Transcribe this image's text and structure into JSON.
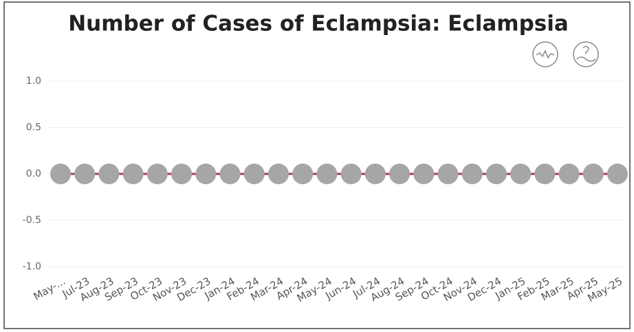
{
  "chart_data": {
    "type": "line",
    "title": "Number of Cases of Eclampsia: Eclampsia",
    "categories": [
      "May-...",
      "Jul-23",
      "Aug-23",
      "Sep-23",
      "Oct-23",
      "Nov-23",
      "Dec-23",
      "Jan-24",
      "Feb-24",
      "Mar-24",
      "Apr-24",
      "May-24",
      "Jun-24",
      "Jul-24",
      "Aug-24",
      "Sep-24",
      "Oct-24",
      "Nov-24",
      "Dec-24",
      "Jan-25",
      "Feb-25",
      "Mar-25",
      "Apr-25",
      "May-25"
    ],
    "series": [
      {
        "name": "Eclampsia",
        "color": "#a6a6a6",
        "line_color": "#b03060",
        "values": [
          0,
          0,
          0,
          0,
          0,
          0,
          0,
          0,
          0,
          0,
          0,
          0,
          0,
          0,
          0,
          0,
          0,
          0,
          0,
          0,
          0,
          0,
          0,
          0
        ]
      }
    ],
    "ylim": [
      -1,
      1
    ],
    "yticks": [
      {
        "value": -1,
        "label": "-1.0"
      },
      {
        "value": -0.5,
        "label": "-0.5"
      },
      {
        "value": 0,
        "label": "0.0"
      },
      {
        "value": 0.5,
        "label": "0.5"
      },
      {
        "value": 1,
        "label": "1.0"
      }
    ],
    "grid": true
  }
}
